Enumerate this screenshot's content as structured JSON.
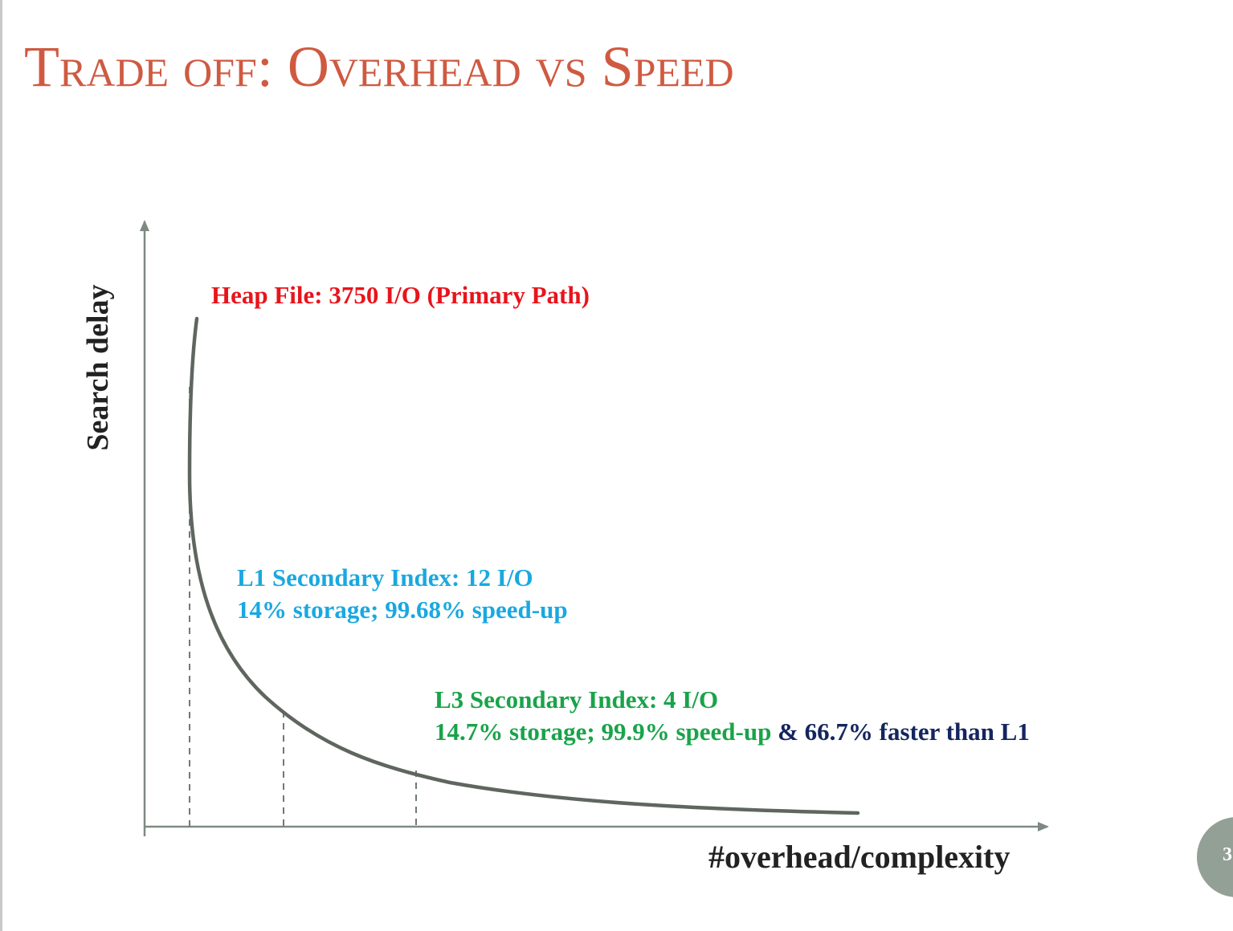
{
  "slide": {
    "title": "Trade off: Overhead vs Speed",
    "page_number": "3"
  },
  "axes": {
    "y_label": "Search delay",
    "x_label": "#overhead/complexity"
  },
  "annotations": {
    "heap": "Heap File: 3750 I/O (Primary Path)",
    "l1_line1": "L1 Secondary Index: 12 I/O",
    "l1_line2": "14% storage; 99.68% speed-up",
    "l3_line1": "L3 Secondary Index: 4 I/O",
    "l3_line2_part1": "14.7% storage; 99.9% speed-up",
    "l3_line2_part2": " & 66.7% faster than L1"
  },
  "colors": {
    "title": "#cf5a41",
    "heap": "#e8141c",
    "l1": "#1aa8e0",
    "l3": "#1aa34a",
    "faster": "#14255f",
    "curve": "#5f665f",
    "axes": "#7d8a82",
    "badge": "#93a095"
  }
}
